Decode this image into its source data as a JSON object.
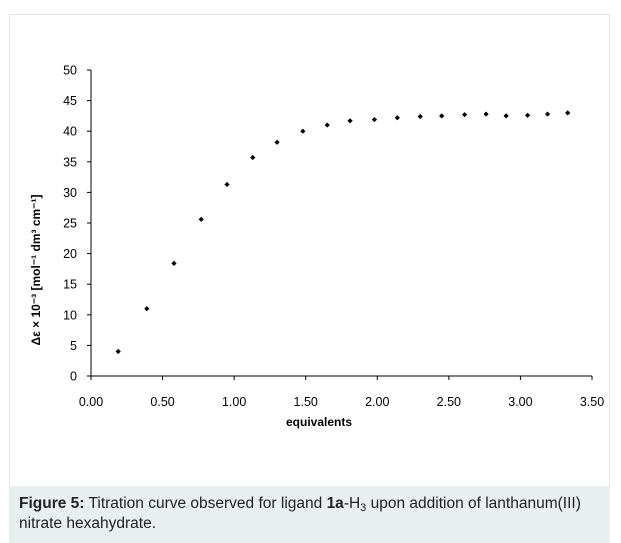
{
  "chart_data": {
    "type": "scatter",
    "title": "",
    "xlabel": "equivalents",
    "ylabel": "Δε × 10⁻³ [mol⁻¹ dm³ cm⁻¹]",
    "xlim": [
      0.0,
      3.5
    ],
    "ylim": [
      0,
      50
    ],
    "x_ticks": [
      "0.00",
      "0.50",
      "1.00",
      "1.50",
      "2.00",
      "2.50",
      "3.00",
      "3.50"
    ],
    "y_ticks": [
      "0",
      "5",
      "10",
      "15",
      "20",
      "25",
      "30",
      "35",
      "40",
      "45",
      "50"
    ],
    "grid": false,
    "marker": "diamond",
    "series": [
      {
        "color": "#000000",
        "points": [
          {
            "x": 0.19,
            "y": 4.0
          },
          {
            "x": 0.39,
            "y": 11.0
          },
          {
            "x": 0.58,
            "y": 18.4
          },
          {
            "x": 0.77,
            "y": 25.6
          },
          {
            "x": 0.95,
            "y": 31.3
          },
          {
            "x": 1.13,
            "y": 35.7
          },
          {
            "x": 1.3,
            "y": 38.2
          },
          {
            "x": 1.48,
            "y": 40.0
          },
          {
            "x": 1.65,
            "y": 41.0
          },
          {
            "x": 1.81,
            "y": 41.7
          },
          {
            "x": 1.98,
            "y": 41.9
          },
          {
            "x": 2.14,
            "y": 42.2
          },
          {
            "x": 2.3,
            "y": 42.4
          },
          {
            "x": 2.45,
            "y": 42.5
          },
          {
            "x": 2.61,
            "y": 42.7
          },
          {
            "x": 2.76,
            "y": 42.8
          },
          {
            "x": 2.9,
            "y": 42.5
          },
          {
            "x": 3.05,
            "y": 42.6
          },
          {
            "x": 3.19,
            "y": 42.8
          },
          {
            "x": 3.33,
            "y": 43.0
          }
        ]
      }
    ]
  },
  "caption": {
    "label": "Figure 5:",
    "text_before": " Titration curve observed for ligand ",
    "compound_bold": "1a",
    "compound_suffix": "-H",
    "compound_sub": "3",
    "text_after": " upon addition of lanthanum(III) nitrate hexahydrate."
  }
}
